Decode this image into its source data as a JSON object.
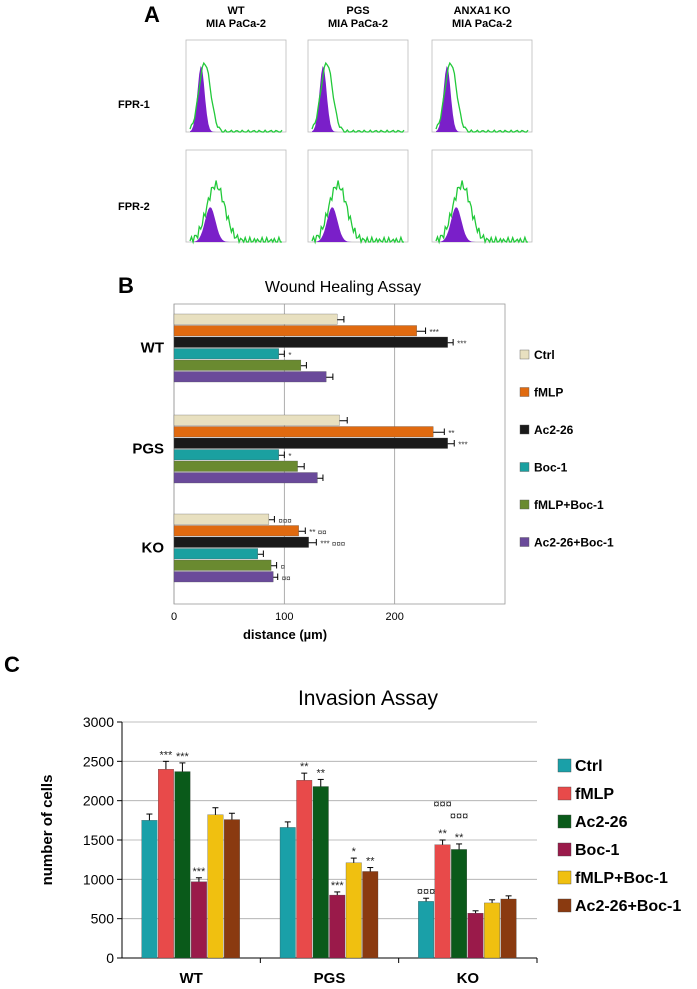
{
  "panel_a": {
    "letter": "A",
    "columns": [
      {
        "line1": "WT",
        "line2": "MIA PaCa-2"
      },
      {
        "line1": "PGS",
        "line2": "MIA PaCa-2"
      },
      {
        "line1": "ANXA1 KO",
        "line2": "MIA PaCa-2"
      }
    ],
    "rows": [
      "FPR-1",
      "FPR-2"
    ],
    "colors": {
      "filled": "#7a1fc9",
      "outline": "#22c93a"
    }
  },
  "chart_data": [
    {
      "type": "bar",
      "orientation": "horizontal",
      "letter": "B",
      "title": "Wound Healing Assay",
      "xlabel": "distance (µm)",
      "xlim": [
        0,
        300
      ],
      "xticks": [
        0,
        100,
        200
      ],
      "categories": [
        "WT",
        "PGS",
        "KO"
      ],
      "series": [
        {
          "name": "Ctrl",
          "color": "#e8e0c0",
          "values": [
            148,
            150,
            86
          ],
          "errors": [
            6,
            7,
            5
          ],
          "marks": [
            "",
            "",
            "¤¤¤"
          ]
        },
        {
          "name": "fMLP",
          "color": "#e06a10",
          "values": [
            220,
            235,
            113
          ],
          "errors": [
            8,
            10,
            6
          ],
          "marks": [
            "***",
            "**",
            "** ¤¤"
          ]
        },
        {
          "name": "Ac2-26",
          "color": "#1a1a1a",
          "values": [
            248,
            248,
            122
          ],
          "errors": [
            5,
            6,
            7
          ],
          "marks": [
            "***",
            "***",
            "*** ¤¤¤"
          ]
        },
        {
          "name": "Boc-1",
          "color": "#1aa0a0",
          "values": [
            95,
            95,
            76
          ],
          "errors": [
            5,
            5,
            5
          ],
          "marks": [
            "*",
            "*",
            ""
          ]
        },
        {
          "name": "fMLP+Boc-1",
          "color": "#6a8a30",
          "values": [
            115,
            112,
            88
          ],
          "errors": [
            5,
            6,
            5
          ],
          "marks": [
            "",
            "",
            "¤"
          ]
        },
        {
          "name": "Ac2-26+Boc-1",
          "color": "#6a4a9a",
          "values": [
            138,
            130,
            90
          ],
          "errors": [
            6,
            5,
            4
          ],
          "marks": [
            "",
            "",
            "¤¤"
          ]
        }
      ],
      "legend_position": "right",
      "grid": true
    },
    {
      "type": "bar",
      "orientation": "vertical",
      "letter": "C",
      "title": "Invasion Assay",
      "ylabel": "number of cells",
      "ylim": [
        0,
        3000
      ],
      "yticks": [
        0,
        500,
        1000,
        1500,
        2000,
        2500,
        3000
      ],
      "categories": [
        "WT",
        "PGS",
        "KO"
      ],
      "series": [
        {
          "name": "Ctrl",
          "color": "#1aa0a8",
          "values": [
            1750,
            1660,
            720
          ],
          "errors": [
            80,
            70,
            40
          ],
          "marks": [
            "",
            "",
            "¤¤¤"
          ]
        },
        {
          "name": "fMLP",
          "color": "#e84a4a",
          "values": [
            2400,
            2260,
            1440
          ],
          "errors": [
            100,
            90,
            60
          ],
          "marks": [
            "***",
            "**",
            "**"
          ]
        },
        {
          "name": "Ac2-26",
          "color": "#0a5a1a",
          "values": [
            2370,
            2180,
            1380
          ],
          "errors": [
            110,
            90,
            70
          ],
          "marks": [
            "***",
            "**",
            "**"
          ]
        },
        {
          "name": "Boc-1",
          "color": "#9a1a4a",
          "values": [
            970,
            800,
            570
          ],
          "errors": [
            50,
            40,
            30
          ],
          "marks": [
            "***",
            "***",
            ""
          ]
        },
        {
          "name": "fMLP+Boc-1",
          "color": "#f0c010",
          "values": [
            1820,
            1210,
            700
          ],
          "errors": [
            90,
            60,
            40
          ],
          "marks": [
            "",
            "*",
            ""
          ]
        },
        {
          "name": "Ac2-26+Boc-1",
          "color": "#8a3a10",
          "values": [
            1760,
            1100,
            750
          ],
          "errors": [
            80,
            50,
            40
          ],
          "marks": [
            "",
            "**",
            ""
          ]
        }
      ],
      "extra_marks": [
        {
          "category": 2,
          "series": 1,
          "text": "¤¤¤",
          "level": 1910
        },
        {
          "category": 2,
          "series": 2,
          "text": "¤¤¤",
          "level": 1760
        }
      ],
      "legend_position": "right",
      "grid": true
    }
  ]
}
